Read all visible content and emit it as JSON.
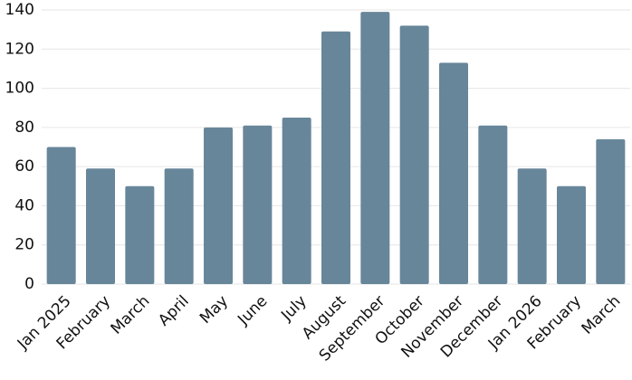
{
  "chart_data": {
    "type": "bar",
    "categories": [
      "Jan 2025",
      "February",
      "March",
      "April",
      "May",
      "June",
      "July",
      "August",
      "September",
      "October",
      "November",
      "December",
      "Jan 2026",
      "February",
      "March"
    ],
    "values": [
      70,
      59,
      50,
      59,
      80,
      81,
      85,
      129,
      139,
      132,
      113,
      81,
      59,
      50,
      74
    ],
    "color": "#67869a",
    "ylim": [
      0,
      140
    ],
    "yticks": [
      0,
      20,
      40,
      60,
      80,
      100,
      120,
      140
    ],
    "grid": true
  }
}
